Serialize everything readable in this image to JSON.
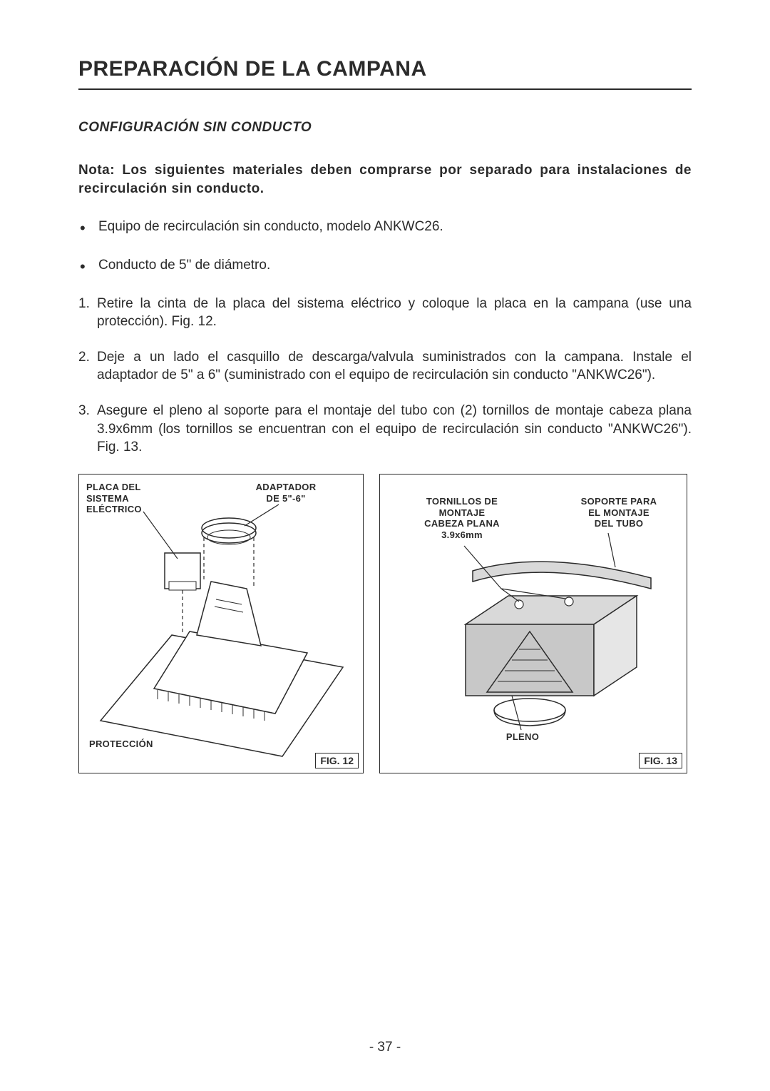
{
  "title": "PREPARACIÓN DE LA CAMPANA",
  "subtitle": "CONFIGURACIÓN SIN CONDUCTO",
  "note": "Nota: Los siguientes materiales deben comprarse por separado para instalaciones de recirculación sin conducto.",
  "bullets": [
    "Equipo de recirculación sin conducto, modelo ANKWC26.",
    "Conducto de 5\" de diámetro."
  ],
  "steps": [
    "Retire la cinta de la placa del sistema eléctrico y coloque la placa en la campana (use una protección). Fig. 12.",
    "Deje a un lado el casquillo de descarga/valvula suministrados con la campana. Instale el adaptador de 5\" a 6\" (suministrado con el equipo de recirculación sin conducto \"ANKWC26\").",
    "Asegure el pleno al soporte para el montaje del tubo con (2) tornillos de montaje cabeza plana 3.9x6mm (los tornillos se encuentran con el equipo de recirculación sin conducto \"ANKWC26\"). Fig. 13."
  ],
  "fig12": {
    "caption": "FIG. 12",
    "labels": {
      "placa": "PLACA DEL\nSISTEMA\nELÉCTRICO",
      "adaptador": "ADAPTADOR\nDE 5\"-6\"",
      "proteccion": "PROTECCIÓN"
    }
  },
  "fig13": {
    "caption": "FIG. 13",
    "labels": {
      "tornillos": "TORNILLOS DE\nMONTAJE\nCABEZA PLANA\n3.9x6mm",
      "soporte": "SOPORTE PARA\nEL MONTAJE\nDEL TUBO",
      "pleno": "PLENO"
    }
  },
  "page_number": "- 37 -",
  "colors": {
    "text": "#2b2b2b",
    "bg": "#ffffff",
    "shade": "#d9d9d9",
    "shade2": "#c8c8c8"
  }
}
